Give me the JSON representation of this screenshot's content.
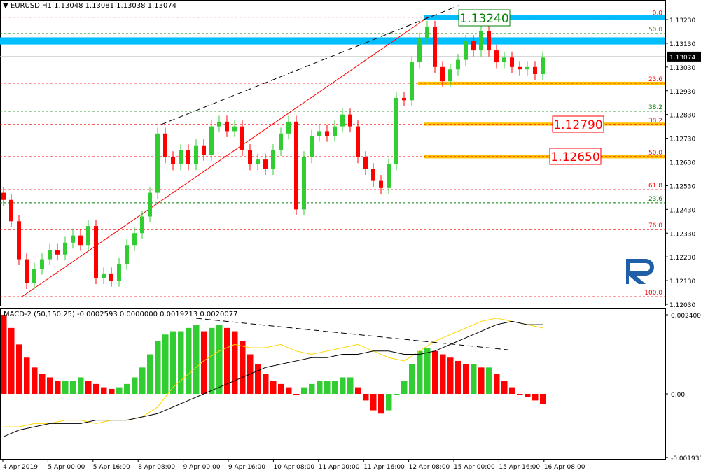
{
  "header": {
    "symbol": "EURUSD,H1",
    "ohlc": "1.13048 1.13081 1.13038 1.13074"
  },
  "macd_header": "MACD-2 (50,150,25) -0.0002593 0.0000000 0.0019213 0.0020077",
  "colors": {
    "up": "#32CD32",
    "down": "#FF0000",
    "fibo_red": "#FF0000",
    "fibo_green": "#008000",
    "zone_blue": "#00BFFF",
    "zone_yellow": "#FFC000",
    "signal": "#000000",
    "macd_line": "#FFD700",
    "logo": "#1F5FA8"
  },
  "chart_data": [
    {
      "type": "candlestick",
      "symbol": "EURUSD",
      "timeframe": "H1",
      "ylim": [
        1.12,
        1.133
      ],
      "y_ticks": [
        "1.13230",
        "1.13130",
        "1.13030",
        "1.12930",
        "1.12830",
        "1.12730",
        "1.12630",
        "1.12530",
        "1.12430",
        "1.12330",
        "1.12230",
        "1.12130",
        "1.12030"
      ],
      "x_ticks": [
        "4 Apr 2019",
        "5 Apr 00:00",
        "5 Apr 16:00",
        "8 Apr 08:00",
        "9 Apr 00:00",
        "9 Apr 16:00",
        "10 Apr 08:00",
        "11 Apr 00:00",
        "11 Apr 16:00",
        "12 Apr 08:00",
        "15 Apr 00:00",
        "15 Apr 16:00",
        "16 Apr 08:00"
      ],
      "current_price": "1.13074",
      "closes": [
        1.1247,
        1.1238,
        1.1222,
        1.1212,
        1.1218,
        1.1222,
        1.1226,
        1.1224,
        1.1229,
        1.1232,
        1.1228,
        1.1236,
        1.1214,
        1.1216,
        1.1213,
        1.122,
        1.1228,
        1.1233,
        1.124,
        1.125,
        1.1275,
        1.1265,
        1.1262,
        1.1268,
        1.1262,
        1.127,
        1.1266,
        1.1278,
        1.128,
        1.1276,
        1.1278,
        1.1268,
        1.1262,
        1.1264,
        1.126,
        1.1268,
        1.1275,
        1.128,
        1.1243,
        1.1265,
        1.1274,
        1.1276,
        1.1274,
        1.1278,
        1.1283,
        1.1278,
        1.1265,
        1.126,
        1.1255,
        1.1252,
        1.1262,
        1.129,
        1.1289,
        1.1305,
        1.1315,
        1.132,
        1.1303,
        1.1297,
        1.1302,
        1.1306,
        1.1314,
        1.131,
        1.1318,
        1.131,
        1.1305,
        1.1307,
        1.1303,
        1.1302,
        1.1303,
        1.13,
        1.1307
      ],
      "fibo_red": [
        {
          "label": "0.0",
          "price": 1.1324
        },
        {
          "label": "23.6",
          "price": 1.12962
        },
        {
          "label": "38.2",
          "price": 1.12788
        },
        {
          "label": "50.0",
          "price": 1.12652
        },
        {
          "label": "61.8",
          "price": 1.12513
        },
        {
          "label": "76.0",
          "price": 1.12345
        },
        {
          "label": "100.0",
          "price": 1.12062
        }
      ],
      "fibo_green": [
        {
          "label": "50.0",
          "price": 1.13171
        },
        {
          "label": "38.2",
          "price": 1.12844
        },
        {
          "label": "23.6",
          "price": 1.12458
        }
      ],
      "targets": [
        {
          "label": "1.13240",
          "price": 1.1324,
          "color": "#008000"
        },
        {
          "label": "1.12790",
          "price": 1.1279,
          "color": "#FF0000"
        },
        {
          "label": "1.12650",
          "price": 1.1265,
          "color": "#FF0000"
        }
      ],
      "zones": [
        {
          "color": "#00BFFF",
          "from": 1.13125,
          "to": 1.13155
        },
        {
          "color": "#00BFFF",
          "from": 1.1323,
          "to": 1.1325
        },
        {
          "color": "#FFC000",
          "from": 1.12955,
          "to": 1.12968
        },
        {
          "color": "#FFC000",
          "from": 1.12783,
          "to": 1.12796
        },
        {
          "color": "#FFC000",
          "from": 1.12645,
          "to": 1.12658
        }
      ]
    },
    {
      "type": "bar+line",
      "title": "MACD-2 (50,150,25)",
      "ylim": [
        -0.001931,
        0.0024005
      ],
      "y_ticks": [
        "0.0024005",
        "0.00",
        "-0.001931"
      ],
      "histogram": [
        0.0024,
        0.002,
        0.0015,
        0.0011,
        0.0008,
        0.0006,
        0.0005,
        0.0004,
        0.0004,
        0.0004,
        0.0005,
        0.0004,
        0.0003,
        0.0002,
        0.00015,
        0.0002,
        0.0003,
        0.0005,
        0.0008,
        0.0012,
        0.0016,
        0.0018,
        0.0019,
        0.0019,
        0.002,
        0.0021,
        0.0019,
        0.002,
        0.0021,
        0.002,
        0.0019,
        0.0016,
        0.0012,
        0.0009,
        0.0006,
        0.0004,
        0.0003,
        0.0002,
        0.0,
        0.0002,
        0.0003,
        0.0004,
        0.0004,
        0.0004,
        0.0005,
        0.0005,
        0.0002,
        -0.0002,
        -0.0005,
        -0.0006,
        -0.0005,
        0.0,
        0.0004,
        0.0009,
        0.0013,
        0.0014,
        0.0013,
        0.0012,
        0.0011,
        0.001,
        0.0009,
        0.0009,
        0.0008,
        0.0008,
        0.0006,
        0.0004,
        0.0002,
        0.0,
        -0.0001,
        -0.0002,
        -0.0003
      ],
      "signal": [
        -0.0013,
        -0.0011,
        -0.001,
        -0.0009,
        -0.0009,
        -0.0009,
        -0.0008,
        -0.0008,
        -0.0008,
        -0.0007,
        -0.0006,
        -0.0004,
        -0.0002,
        0.0,
        0.0002,
        0.0004,
        0.0006,
        0.0008,
        0.0009,
        0.001,
        0.0011,
        0.0011,
        0.0012,
        0.0012,
        0.0013,
        0.0013,
        0.0012,
        0.0012,
        0.0013,
        0.0015,
        0.0017,
        0.0019,
        0.0021,
        0.0022,
        0.0021,
        0.0021
      ],
      "macd_line": [
        -0.001,
        -0.001,
        -0.0009,
        -0.0009,
        -0.0008,
        -0.0008,
        -0.0009,
        -0.0008,
        -0.0008,
        -0.0007,
        -0.0004,
        0.0002,
        0.0006,
        0.001,
        0.0013,
        0.0015,
        0.0014,
        0.0014,
        0.0015,
        0.0013,
        0.0012,
        0.0013,
        0.0014,
        0.0015,
        0.0013,
        0.0011,
        0.001,
        0.0013,
        0.0016,
        0.0018,
        0.002,
        0.0022,
        0.0023,
        0.0022,
        0.0021,
        0.002
      ]
    }
  ]
}
